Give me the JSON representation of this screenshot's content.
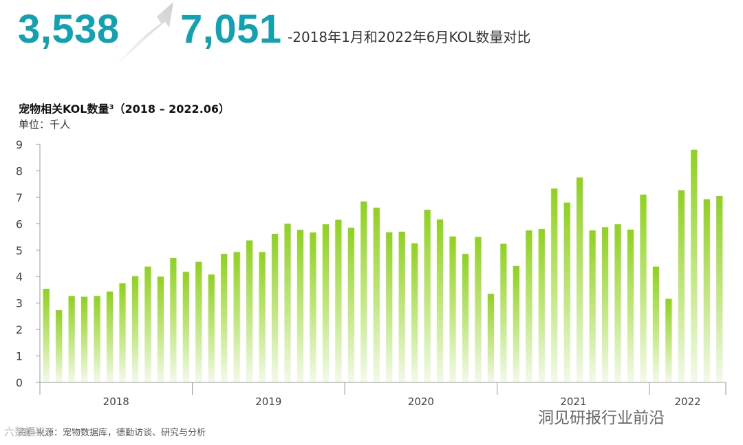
{
  "header": {
    "from_value": "3,538",
    "to_value": "7,051",
    "headline": "-2018年1月和2022年6月KOL数量对比"
  },
  "chart_title": "宠物相关KOL数量³（2018 – 2022.06）",
  "unit_label": "单位：千人",
  "source_note": "资料来源：宠物数据库，德勤访谈、研究与分析",
  "watermarks": {
    "right": "洞见研报行业前沿",
    "left": "六数据说"
  },
  "colors": {
    "accent": "#12a1b0",
    "bar_top": "#8fd11f",
    "bar_bottom": "#eef9dc",
    "arrow": "#d9d9d9"
  },
  "chart_data": {
    "type": "bar",
    "ylim": [
      0,
      9
    ],
    "yticks": [
      "0",
      "1",
      "2",
      "3",
      "4",
      "5",
      "6",
      "7",
      "8",
      "9"
    ],
    "grid": false,
    "year_groups": [
      {
        "label": "2018",
        "count": 12
      },
      {
        "label": "2019",
        "count": 12
      },
      {
        "label": "2020",
        "count": 12
      },
      {
        "label": "2021",
        "count": 12
      },
      {
        "label": "2022",
        "count": 6
      }
    ],
    "values": [
      3.54,
      2.73,
      3.27,
      3.24,
      3.27,
      3.44,
      3.75,
      4.02,
      4.38,
      4.0,
      4.71,
      4.18,
      4.56,
      4.08,
      4.86,
      4.93,
      5.37,
      4.93,
      5.62,
      6.0,
      5.77,
      5.67,
      5.98,
      6.15,
      5.85,
      6.84,
      6.61,
      5.68,
      5.7,
      5.26,
      6.53,
      6.16,
      5.52,
      4.86,
      5.5,
      3.35,
      5.24,
      4.4,
      5.75,
      5.8,
      7.33,
      6.8,
      7.75,
      5.75,
      5.87,
      5.98,
      5.78,
      7.1,
      4.38,
      3.16,
      7.27,
      8.8,
      6.93,
      7.05
    ]
  }
}
